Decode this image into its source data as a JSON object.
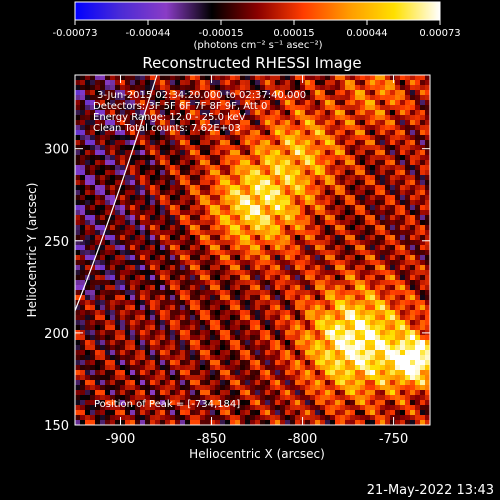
{
  "colorbar": {
    "tick_labels": [
      "-0.00073",
      "-0.00044",
      "-0.00015",
      "0.00015",
      "0.00044",
      "0.00073"
    ],
    "unit_label": "(photons cm⁻² s⁻¹ asec⁻²)",
    "colors": [
      "#0000ff",
      "#4b2bd6",
      "#8a3cc6",
      "#000000",
      "#8a0000",
      "#ff3c00",
      "#ff9a00",
      "#ffe000",
      "#ffffff"
    ]
  },
  "chart_data": {
    "type": "heatmap",
    "title": "Reconstructed RHESSI Image",
    "xlabel": "Heliocentric X (arcsec)",
    "ylabel": "Heliocentric Y (arcsec)",
    "xlim": [
      -925,
      -730
    ],
    "ylim": [
      150,
      340
    ],
    "value_range": [
      -0.00073,
      0.00073
    ],
    "x_ticks": [
      -900,
      -850,
      -800,
      -750
    ],
    "x_tick_labels": [
      "-900",
      "-850",
      "-800",
      "-750"
    ],
    "y_ticks": [
      150,
      200,
      250,
      300
    ],
    "y_tick_labels": [
      "150",
      "200",
      "250",
      "300"
    ],
    "info_lines": [
      "3-Jun-2015 02:34:20.000 to 02:37:40.000",
      "Detectors: 3F 5F 6F 7F 8F 9F, Att 0",
      "Energy Range: 12.0 - 25.0 keV",
      "Clean    Total counts: 7.62E+03"
    ],
    "peak_label": "Position of Peak = [-734,184]",
    "peak": [
      -734,
      184
    ],
    "sources": [
      {
        "x": -825,
        "y": 270,
        "amplitude": 0.00055,
        "sigma": 18
      },
      {
        "x": -800,
        "y": 300,
        "amplitude": 0.00035,
        "sigma": 16
      },
      {
        "x": -770,
        "y": 195,
        "amplitude": 0.0007,
        "sigma": 20
      },
      {
        "x": -738,
        "y": 185,
        "amplitude": 0.0007,
        "sigma": 9
      },
      {
        "x": -760,
        "y": 330,
        "amplitude": 0.00025,
        "sigma": 14
      }
    ],
    "limb_curve": [
      [
        -925,
        212
      ],
      [
        -905,
        262
      ],
      [
        -880,
        340
      ]
    ]
  },
  "footer": {
    "timestamp": "21-May-2022 13:43"
  }
}
